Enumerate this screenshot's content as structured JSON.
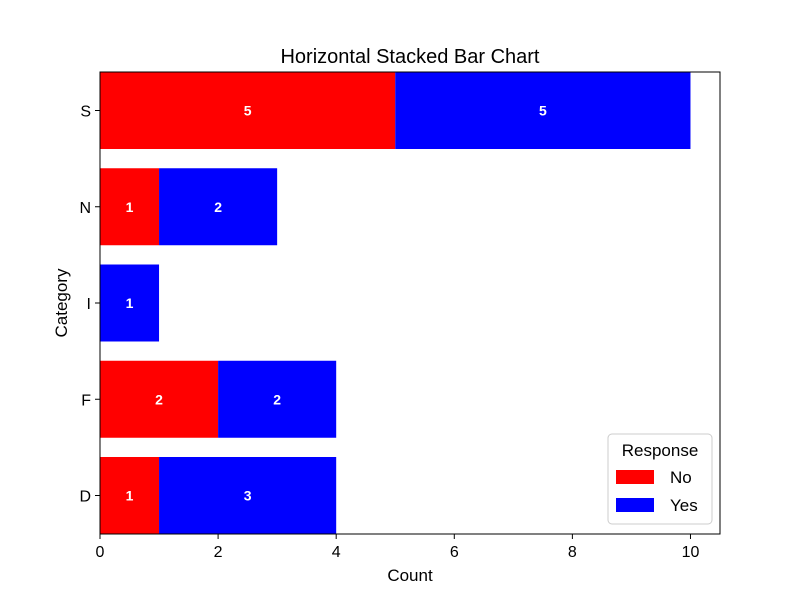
{
  "chart_data": {
    "type": "bar",
    "orientation": "horizontal",
    "stacked": true,
    "title": "Horizontal Stacked Bar Chart",
    "xlabel": "Count",
    "ylabel": "Category",
    "categories": [
      "D",
      "F",
      "I",
      "N",
      "S"
    ],
    "series": [
      {
        "name": "No",
        "color": "#ff0000",
        "values": [
          1,
          2,
          0,
          1,
          5
        ]
      },
      {
        "name": "Yes",
        "color": "#0000ff",
        "values": [
          3,
          2,
          1,
          2,
          5
        ]
      }
    ],
    "xlim": [
      0,
      10.5
    ],
    "xticks": [
      0,
      2,
      4,
      6,
      8,
      10
    ],
    "grid": false,
    "bar_labels": true,
    "legend": {
      "title": "Response",
      "position": "lower right"
    }
  }
}
